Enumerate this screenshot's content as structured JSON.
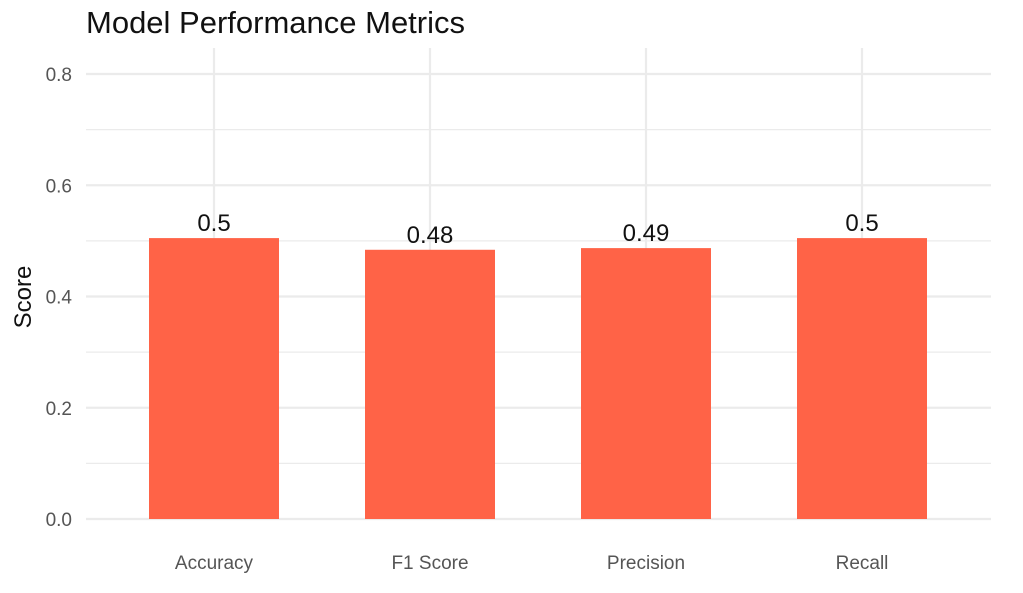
{
  "chart_data": {
    "type": "bar",
    "title": "Model Performance Metrics",
    "xlabel": "",
    "ylabel": "Score",
    "categories": [
      "Accuracy",
      "F1 Score",
      "Precision",
      "Recall"
    ],
    "values": [
      0.505,
      0.484,
      0.487,
      0.505
    ],
    "data_labels": [
      "0.5",
      "0.48",
      "0.49",
      "0.5"
    ],
    "ylim": [
      0,
      0.82
    ],
    "yticks": [
      0,
      0.2,
      0.4,
      0.6,
      0.8
    ],
    "ytick_labels": [
      "0.0",
      "0.2",
      "0.4",
      "0.6",
      "0.8"
    ],
    "grid": true,
    "legend": "none",
    "bar_color": "#FF6347",
    "grid_color": "#EBEBEB"
  }
}
